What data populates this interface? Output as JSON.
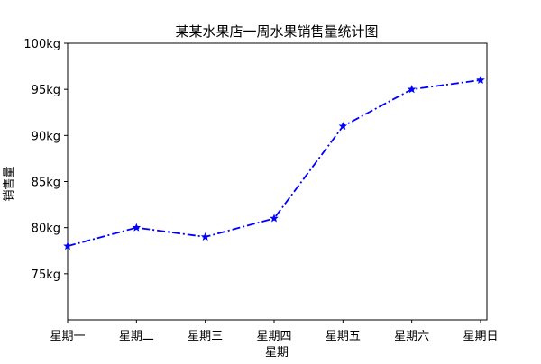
{
  "chart_data": {
    "type": "line",
    "title": "某某水果店一周水果销售量统计图",
    "xlabel": "星期",
    "ylabel": "销售量",
    "categories": [
      "星期一",
      "星期二",
      "星期三",
      "星期四",
      "星期五",
      "星期六",
      "星期日"
    ],
    "series": [
      {
        "values": [
          78,
          80,
          79,
          81,
          91,
          95,
          96
        ],
        "color": "#0000ff",
        "line_style": "dash-dot",
        "marker": "star"
      }
    ],
    "ylim": [
      70,
      100
    ],
    "yticks": [
      75,
      80,
      85,
      90,
      95,
      100
    ],
    "ytick_labels": [
      "75kg",
      "80kg",
      "85kg",
      "90kg",
      "95kg",
      "100kg"
    ],
    "grid": false,
    "legend": false
  }
}
